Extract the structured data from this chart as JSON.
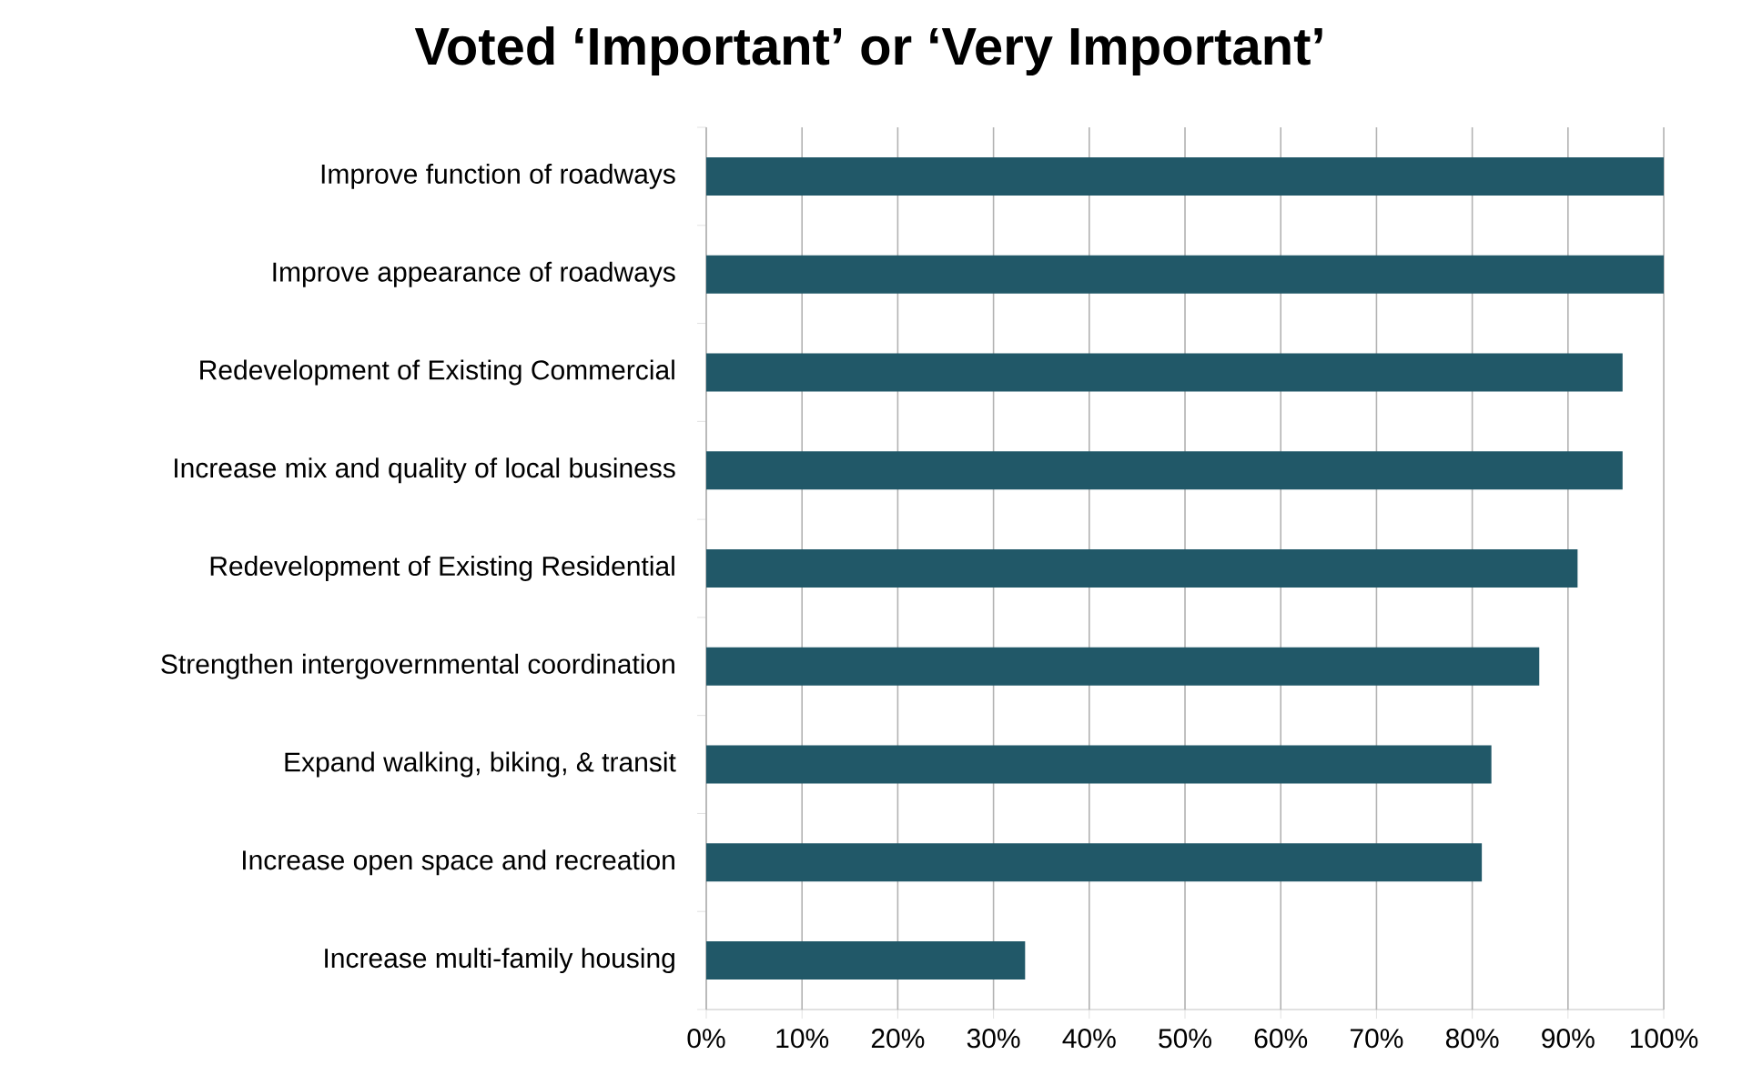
{
  "chart_data": {
    "type": "bar",
    "orientation": "horizontal",
    "title": "Voted ‘Important’ or ‘Very Important’",
    "categories": [
      "Improve function of roadways",
      "Improve appearance of roadways",
      "Redevelopment of Existing Commercial",
      "Increase mix and quality of local business",
      "Redevelopment of Existing Residential",
      "Strengthen intergovernmental coordination",
      "Expand walking, biking, & transit",
      "Increase open space and recreation",
      "Increase multi-family housing"
    ],
    "values": [
      100,
      100,
      95.7,
      95.7,
      91,
      87,
      82,
      81,
      33.3
    ],
    "color": "#215868",
    "xlim": [
      0,
      100
    ],
    "xticks": [
      {
        "value": 0,
        "label": "0%"
      },
      {
        "value": 10,
        "label": "10%"
      },
      {
        "value": 20,
        "label": "20%"
      },
      {
        "value": 30,
        "label": "30%"
      },
      {
        "value": 40,
        "label": "40%"
      },
      {
        "value": 50,
        "label": "50%"
      },
      {
        "value": 60,
        "label": "60%"
      },
      {
        "value": 70,
        "label": "70%"
      },
      {
        "value": 80,
        "label": "80%"
      },
      {
        "value": 90,
        "label": "90%"
      },
      {
        "value": 100,
        "label": "100%"
      }
    ],
    "grid": "x"
  }
}
